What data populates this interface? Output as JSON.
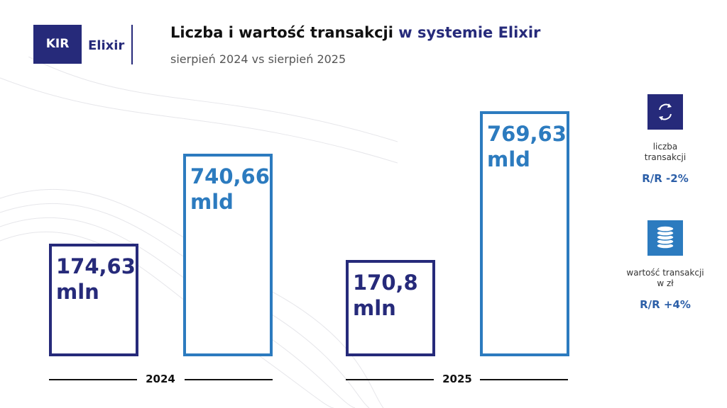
{
  "header": {
    "logo": "KIR",
    "brand": "Elixir",
    "title": "Liczba i wartość transakcji",
    "title_highlight": "w systemie Elixir",
    "subtitle": "sierpień 2024 vs sierpień 2025"
  },
  "groups": [
    {
      "year": "2024",
      "boxes": [
        {
          "value": "174,63",
          "unit": "mln"
        },
        {
          "value": "740,66",
          "unit": "mld"
        }
      ]
    },
    {
      "year": "2025",
      "boxes": [
        {
          "value": "170,8",
          "unit": "mln"
        },
        {
          "value": "769,63",
          "unit": "mld"
        }
      ]
    }
  ],
  "side": [
    {
      "label": [
        "liczba",
        "transakcji"
      ],
      "change": "R/R -2%"
    },
    {
      "label": [
        "wartość transakcji",
        "w zł"
      ],
      "change": "R/R +4%"
    }
  ]
}
